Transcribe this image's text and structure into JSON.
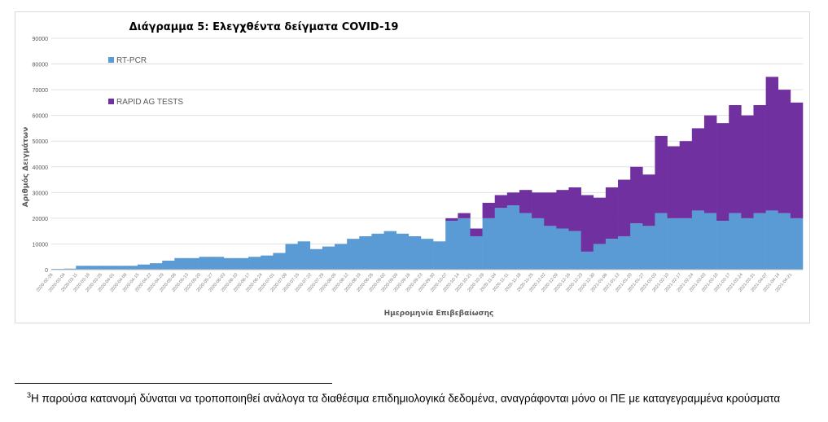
{
  "chart_data": {
    "type": "bar",
    "stacked": true,
    "title": "Διάγραμμα 5: Ελεγχθέντα δείγματα COVID-19",
    "xlabel": "Ημερομηνία Επιβεβαίωσης",
    "ylabel": "Αριθμός Δειγμάτων",
    "ylim": [
      0,
      90000
    ],
    "yticks": [
      0,
      10000,
      20000,
      30000,
      40000,
      50000,
      60000,
      70000,
      80000,
      90000
    ],
    "grid": true,
    "legend_placement": "top-left",
    "categories": [
      "2020-02-26",
      "2020-03-04",
      "2020-03-11",
      "2020-03-18",
      "2020-03-25",
      "2020-04-01",
      "2020-04-08",
      "2020-04-15",
      "2020-04-22",
      "2020-04-29",
      "2020-05-06",
      "2020-05-13",
      "2020-05-20",
      "2020-05-27",
      "2020-06-03",
      "2020-06-10",
      "2020-06-17",
      "2020-06-24",
      "2020-07-01",
      "2020-07-08",
      "2020-07-15",
      "2020-07-22",
      "2020-07-29",
      "2020-08-05",
      "2020-08-12",
      "2020-08-19",
      "2020-08-26",
      "2020-09-02",
      "2020-09-09",
      "2020-09-16",
      "2020-09-23",
      "2020-09-30",
      "2020-10-07",
      "2020-10-14",
      "2020-10-21",
      "2020-10-28",
      "2020-11-04",
      "2020-11-11",
      "2020-11-18",
      "2020-11-25",
      "2020-12-02",
      "2020-12-09",
      "2020-12-16",
      "2020-12-23",
      "2020-12-30",
      "2021-01-06",
      "2021-01-13",
      "2021-01-20",
      "2021-01-27",
      "2021-02-03",
      "2021-02-10",
      "2021-02-17",
      "2021-02-24",
      "2021-03-03",
      "2021-03-10",
      "2021-03-17",
      "2021-03-24",
      "2021-03-31",
      "2021-04-07",
      "2021-04-14",
      "2021-04-21"
    ],
    "series": [
      {
        "name": "RT-PCR",
        "color": "#5b9bd5",
        "values": [
          300,
          400,
          1500,
          1500,
          1500,
          1500,
          1500,
          2000,
          2500,
          3500,
          4500,
          4500,
          5000,
          5000,
          4500,
          4500,
          5000,
          5500,
          6500,
          10000,
          11000,
          8000,
          9000,
          10000,
          12000,
          13000,
          14000,
          15000,
          14000,
          13000,
          12000,
          11000,
          19000,
          20000,
          13000,
          20000,
          24000,
          25000,
          22000,
          20000,
          17000,
          16000,
          15000,
          7000,
          10000,
          12000,
          13000,
          18000,
          17000,
          22000,
          20000,
          20000,
          23000,
          22000,
          19000,
          22000,
          20000,
          22000,
          23000,
          22000,
          20000
        ]
      },
      {
        "name": "RAPID AG TESTS",
        "color": "#7030a0",
        "values": [
          0,
          0,
          0,
          0,
          0,
          0,
          0,
          0,
          0,
          0,
          0,
          0,
          0,
          0,
          0,
          0,
          0,
          0,
          0,
          0,
          0,
          0,
          0,
          0,
          0,
          0,
          0,
          0,
          0,
          0,
          0,
          0,
          1000,
          2000,
          3000,
          6000,
          5000,
          5000,
          9000,
          10000,
          13000,
          15000,
          17000,
          22000,
          18000,
          20000,
          22000,
          22000,
          20000,
          30000,
          28000,
          30000,
          32000,
          38000,
          38000,
          42000,
          40000,
          42000,
          52000,
          48000,
          45000
        ]
      }
    ]
  },
  "footnote": {
    "marker": "3",
    "text": "Η παρούσα κατανομή δύναται να τροποποιηθεί ανάλογα τα διαθέσιμα επιδημιολογικά δεδομένα, αναγράφονται μόνο οι ΠΕ με καταγεγραμμένα κρούσματα"
  }
}
